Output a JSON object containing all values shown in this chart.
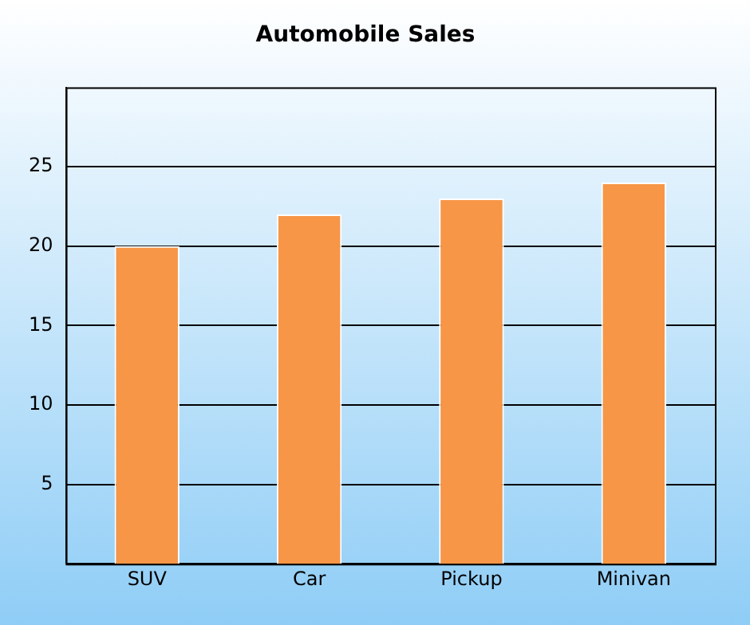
{
  "chart_data": {
    "type": "bar",
    "title": "Automobile Sales",
    "categories": [
      "SUV",
      "Car",
      "Pickup",
      "Minivan"
    ],
    "values": [
      20,
      22,
      23,
      24
    ],
    "color": "#f79646",
    "ylim": [
      0,
      30
    ],
    "yticks": [
      5,
      10,
      15,
      20,
      25
    ],
    "grid": "y",
    "legend": false
  }
}
